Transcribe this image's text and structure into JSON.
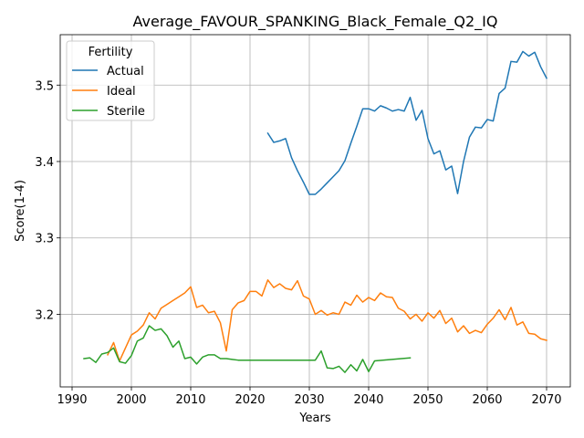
{
  "chart_data": {
    "type": "line",
    "title": "Average_FAVOUR_SPANKING_Black_Female_Q2_IQ",
    "xlabel": "Years",
    "ylabel": "Score(1-4)",
    "xlim": [
      1988,
      2074
    ],
    "ylim": [
      3.105,
      3.566
    ],
    "x_ticks": [
      1990,
      2000,
      2010,
      2020,
      2030,
      2040,
      2050,
      2060,
      2070
    ],
    "y_ticks": [
      3.2,
      3.3,
      3.4,
      3.5
    ],
    "y_tick_labels": [
      "3.2",
      "3.3",
      "3.4",
      "3.5"
    ],
    "grid": true,
    "legend": {
      "title": "Fertility",
      "position": "top-left"
    },
    "series": [
      {
        "name": "Actual",
        "color": "#1f77b4",
        "x": [
          2023,
          2024,
          2025,
          2026,
          2027,
          2028,
          2029,
          2030,
          2031,
          2032,
          2033,
          2034,
          2035,
          2036,
          2037,
          2038,
          2039,
          2040,
          2041,
          2042,
          2043,
          2044,
          2045,
          2046,
          2047,
          2048,
          2049,
          2050,
          2051,
          2052,
          2053,
          2054,
          2055,
          2056,
          2057,
          2058,
          2059,
          2060,
          2061,
          2062,
          2063,
          2064,
          2065,
          2066,
          2067,
          2068,
          2069,
          2070
        ],
        "y": [
          3.437,
          3.425,
          3.427,
          3.43,
          3.405,
          3.388,
          3.373,
          3.357,
          3.357,
          3.364,
          3.372,
          3.38,
          3.388,
          3.401,
          3.424,
          3.446,
          3.469,
          3.469,
          3.466,
          3.473,
          3.47,
          3.466,
          3.468,
          3.466,
          3.484,
          3.454,
          3.467,
          3.43,
          3.41,
          3.414,
          3.389,
          3.394,
          3.358,
          3.4,
          3.432,
          3.445,
          3.444,
          3.455,
          3.453,
          3.489,
          3.496,
          3.531,
          3.53,
          3.544,
          3.538,
          3.543,
          3.524,
          3.509
        ]
      },
      {
        "name": "Ideal",
        "color": "#ff7f0e",
        "x": [
          1996,
          1997,
          1998,
          1999,
          2000,
          2001,
          2002,
          2003,
          2004,
          2005,
          2006,
          2007,
          2008,
          2009,
          2010,
          2011,
          2012,
          2013,
          2014,
          2015,
          2016,
          2017,
          2018,
          2019,
          2020,
          2021,
          2022,
          2023,
          2024,
          2025,
          2026,
          2027,
          2028,
          2029,
          2030,
          2031,
          2032,
          2033,
          2034,
          2035,
          2036,
          2037,
          2038,
          2039,
          2040,
          2041,
          2042,
          2043,
          2044,
          2045,
          2046,
          2047,
          2048,
          2049,
          2050,
          2051,
          2052,
          2053,
          2054,
          2055,
          2056,
          2057,
          2058,
          2059,
          2060,
          2061,
          2062,
          2063,
          2064,
          2065,
          2066,
          2067,
          2068,
          2069,
          2070
        ],
        "y": [
          3.147,
          3.163,
          3.139,
          3.156,
          3.173,
          3.178,
          3.186,
          3.202,
          3.194,
          3.208,
          3.213,
          3.218,
          3.223,
          3.228,
          3.236,
          3.209,
          3.212,
          3.202,
          3.204,
          3.189,
          3.152,
          3.206,
          3.215,
          3.218,
          3.23,
          3.23,
          3.224,
          3.245,
          3.235,
          3.24,
          3.234,
          3.232,
          3.244,
          3.224,
          3.22,
          3.2,
          3.205,
          3.199,
          3.202,
          3.2,
          3.216,
          3.212,
          3.225,
          3.216,
          3.222,
          3.218,
          3.228,
          3.223,
          3.222,
          3.208,
          3.204,
          3.194,
          3.2,
          3.191,
          3.202,
          3.195,
          3.205,
          3.188,
          3.195,
          3.177,
          3.185,
          3.175,
          3.179,
          3.176,
          3.187,
          3.195,
          3.206,
          3.193,
          3.209,
          3.186,
          3.19,
          3.175,
          3.174,
          3.168,
          3.166
        ]
      },
      {
        "name": "Sterile",
        "color": "#2ca02c",
        "x": [
          1992,
          1993,
          1994,
          1995,
          1996,
          1997,
          1998,
          1999,
          2000,
          2001,
          2002,
          2003,
          2004,
          2005,
          2006,
          2007,
          2008,
          2009,
          2010,
          2011,
          2012,
          2013,
          2014,
          2015,
          2016,
          2017,
          2018,
          2019,
          2020,
          2021,
          2022,
          2023,
          2024,
          2025,
          2026,
          2027,
          2028,
          2029,
          2030,
          2031,
          2032,
          2033,
          2034,
          2035,
          2036,
          2037,
          2038,
          2039,
          2040,
          2041,
          2047
        ],
        "y": [
          3.142,
          3.143,
          3.137,
          3.148,
          3.15,
          3.156,
          3.138,
          3.136,
          3.146,
          3.165,
          3.169,
          3.185,
          3.179,
          3.181,
          3.172,
          3.157,
          3.165,
          3.142,
          3.144,
          3.135,
          3.144,
          3.147,
          3.147,
          3.142,
          3.142,
          3.141,
          3.14,
          3.14,
          3.14,
          3.14,
          3.14,
          3.14,
          3.14,
          3.14,
          3.14,
          3.14,
          3.14,
          3.14,
          3.14,
          3.14,
          3.152,
          3.13,
          3.129,
          3.132,
          3.124,
          3.134,
          3.126,
          3.141,
          3.125,
          3.139,
          3.143
        ]
      }
    ]
  }
}
